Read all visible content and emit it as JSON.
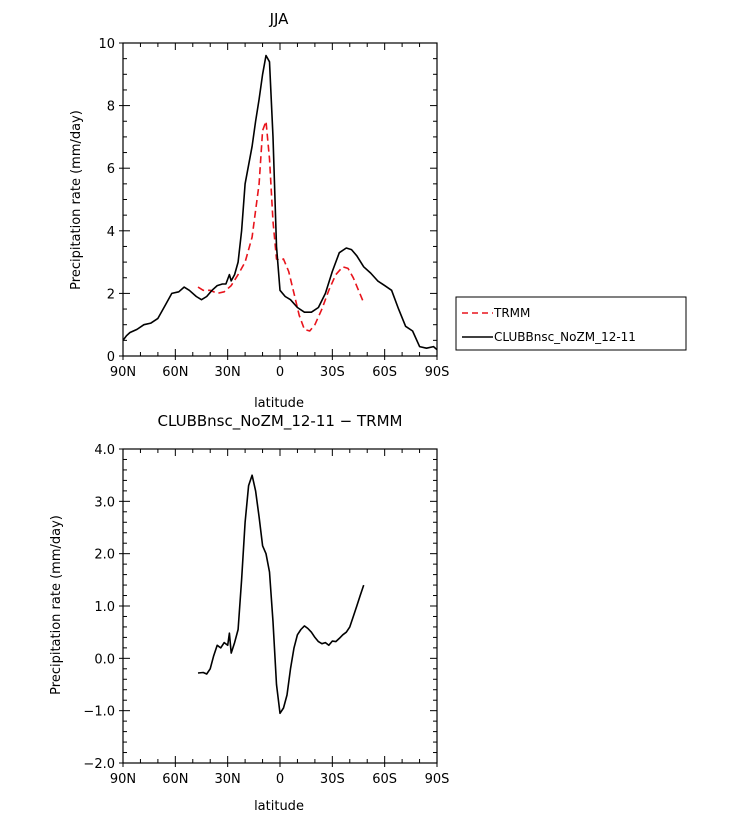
{
  "colors": {
    "trmm": "#e8141c",
    "model": "#000000",
    "axis": "#000000"
  },
  "chart_data": [
    {
      "type": "line",
      "title": "JJA",
      "xlabel": "latitude",
      "ylabel": "Precipitation rate (mm/day)",
      "xlim": [
        90,
        -90
      ],
      "ylim": [
        0,
        10
      ],
      "yticks": [
        0,
        2,
        4,
        6,
        8,
        10
      ],
      "yticklabels": [
        "0",
        "2",
        "4",
        "6",
        "8",
        "10"
      ],
      "xticks": [
        90,
        60,
        30,
        0,
        -30,
        -60,
        -90
      ],
      "xticklabels": [
        "90N",
        "60N",
        "30N",
        "0",
        "30S",
        "60S",
        "90S"
      ],
      "grid": false,
      "legend_position": "right",
      "series": [
        {
          "name": "TRMM",
          "style": "dashed",
          "color": "#e8141c",
          "x": [
            47,
            44,
            40,
            36,
            32,
            28,
            24,
            20,
            16,
            12,
            10,
            8,
            6,
            4,
            2,
            0,
            -2,
            -5,
            -8,
            -11,
            -14,
            -17,
            -20,
            -24,
            -28,
            -32,
            -36,
            -39,
            -42,
            -45,
            -48
          ],
          "y": [
            2.2,
            2.1,
            2.1,
            2.0,
            2.05,
            2.25,
            2.6,
            3.0,
            3.8,
            5.5,
            7.2,
            7.5,
            6.3,
            4.3,
            3.1,
            3.05,
            3.1,
            2.7,
            2.0,
            1.3,
            0.85,
            0.8,
            1.0,
            1.5,
            2.1,
            2.6,
            2.85,
            2.8,
            2.5,
            2.1,
            1.7
          ]
        },
        {
          "name": "CLUBBnsc_NoZM_12-11",
          "style": "solid",
          "color": "#000000",
          "x": [
            90,
            88,
            86,
            82,
            78,
            74,
            70,
            66,
            62,
            58,
            55,
            52,
            48,
            45,
            42,
            39,
            36,
            33,
            31,
            29,
            28,
            26,
            24,
            22,
            20,
            16,
            14,
            12,
            10,
            8,
            6,
            4,
            2,
            0,
            -3,
            -6,
            -10,
            -14,
            -18,
            -22,
            -26,
            -30,
            -34,
            -38,
            -41,
            -44,
            -48,
            -52,
            -56,
            -60,
            -64,
            -68,
            -72,
            -76,
            -80,
            -84,
            -88,
            -90
          ],
          "y": [
            0.5,
            0.65,
            0.75,
            0.85,
            1.0,
            1.05,
            1.2,
            1.6,
            2.0,
            2.05,
            2.2,
            2.1,
            1.9,
            1.8,
            1.9,
            2.1,
            2.25,
            2.3,
            2.3,
            2.6,
            2.4,
            2.6,
            3.0,
            4.0,
            5.5,
            6.7,
            7.5,
            8.2,
            9.0,
            9.6,
            9.4,
            7.0,
            3.5,
            2.1,
            1.9,
            1.8,
            1.55,
            1.4,
            1.4,
            1.55,
            2.0,
            2.7,
            3.3,
            3.45,
            3.4,
            3.2,
            2.85,
            2.65,
            2.4,
            2.25,
            2.1,
            1.5,
            0.95,
            0.8,
            0.3,
            0.25,
            0.3,
            0.2
          ]
        }
      ]
    },
    {
      "type": "line",
      "title": "CLUBBnsc_NoZM_12-11 − TRMM",
      "xlabel": "latitude",
      "ylabel": "Precipitation rate (mm/day)",
      "xlim": [
        90,
        -90
      ],
      "ylim": [
        -2.0,
        4.0
      ],
      "yticks": [
        -2,
        -1,
        0,
        1,
        2,
        3,
        4
      ],
      "yticklabels": [
        "−2.0",
        "−1.0",
        "0.0",
        "1.0",
        "2.0",
        "3.0",
        "4.0"
      ],
      "xticks": [
        90,
        60,
        30,
        0,
        -30,
        -60,
        -90
      ],
      "xticklabels": [
        "90N",
        "60N",
        "30N",
        "0",
        "30S",
        "60S",
        "90S"
      ],
      "grid": false,
      "series": [
        {
          "name": "",
          "style": "solid",
          "color": "#000000",
          "x": [
            47,
            44,
            42,
            40,
            38,
            36,
            34,
            32,
            30,
            29,
            28,
            26,
            24,
            22,
            20,
            18,
            16,
            14,
            12,
            10,
            8,
            6,
            4,
            2,
            0,
            -2,
            -4,
            -6,
            -8,
            -10,
            -12,
            -14,
            -16,
            -18,
            -20,
            -22,
            -24,
            -26,
            -28,
            -30,
            -32,
            -34,
            -36,
            -38,
            -40,
            -42,
            -44,
            -46,
            -48
          ],
          "y": [
            -0.28,
            -0.27,
            -0.3,
            -0.2,
            0.05,
            0.25,
            0.2,
            0.3,
            0.25,
            0.48,
            0.1,
            0.3,
            0.55,
            1.5,
            2.6,
            3.3,
            3.5,
            3.2,
            2.7,
            2.15,
            2.0,
            1.65,
            0.7,
            -0.5,
            -1.05,
            -0.95,
            -0.7,
            -0.2,
            0.2,
            0.45,
            0.55,
            0.62,
            0.57,
            0.5,
            0.4,
            0.32,
            0.28,
            0.3,
            0.25,
            0.33,
            0.32,
            0.38,
            0.45,
            0.5,
            0.6,
            0.8,
            1.0,
            1.2,
            1.4
          ]
        }
      ]
    }
  ]
}
